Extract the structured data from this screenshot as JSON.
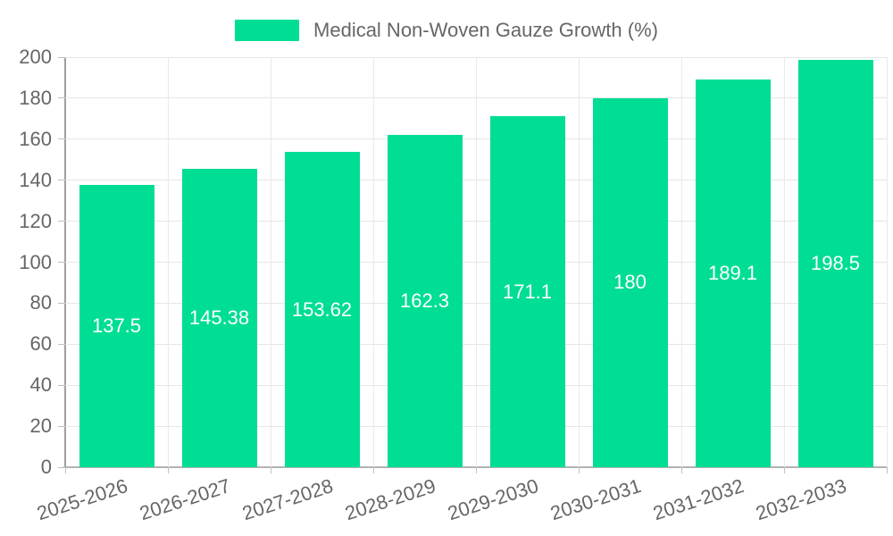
{
  "legend": {
    "label": "Medical Non-Woven Gauze Growth (%)"
  },
  "chart_data": {
    "type": "bar",
    "title": "Medical Non-Woven Gauze Growth (%)",
    "categories": [
      "2025-2026",
      "2026-2027",
      "2027-2028",
      "2028-2029",
      "2029-2030",
      "2030-2031",
      "2031-2032",
      "2032-2033"
    ],
    "values": [
      137.5,
      145.38,
      153.62,
      162.3,
      171.1,
      180,
      189.1,
      198.5
    ],
    "value_labels": [
      "137.5",
      "145.38",
      "153.62",
      "162.3",
      "171.1",
      "180",
      "189.1",
      "198.5"
    ],
    "xlabel": "",
    "ylabel": "",
    "ylim": [
      0,
      200
    ],
    "yticks": [
      0,
      20,
      40,
      60,
      80,
      100,
      120,
      140,
      160,
      180,
      200
    ],
    "grid": true,
    "legend_position": "top-center",
    "colors": {
      "bar": "#00dd94",
      "bar_value_text": "#ffffff",
      "axis_text": "#666666",
      "hgrid": "#e6e6e6",
      "vgrid": "#e9e9e9",
      "axis_line": "#9e9e9e"
    }
  }
}
